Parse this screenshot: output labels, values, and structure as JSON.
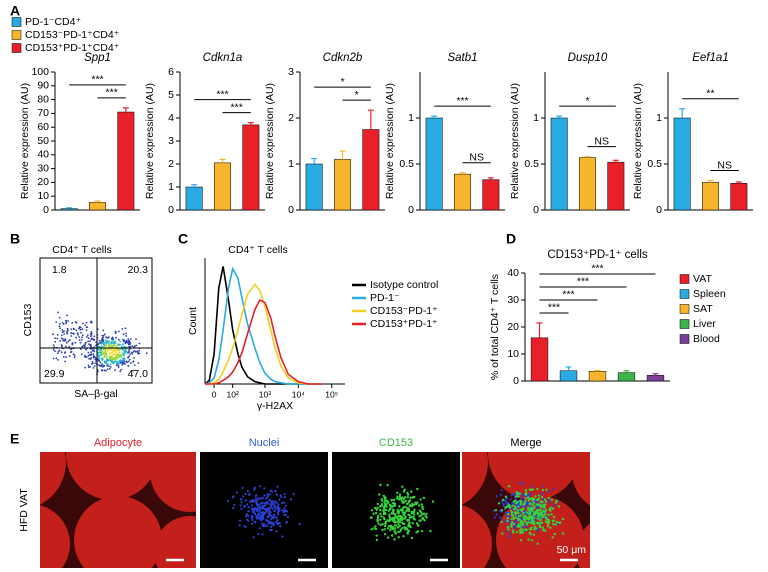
{
  "panel_labels": [
    "A",
    "B",
    "C",
    "D",
    "E"
  ],
  "legend": [
    {
      "name": "PD-1⁻CD4⁺",
      "color": "#29abe2"
    },
    {
      "name": "CD153⁻PD-1⁺CD4⁺",
      "color": "#f7b52c"
    },
    {
      "name": "CD153⁺PD-1⁺CD4⁺",
      "color": "#e8202a"
    }
  ],
  "chart_data": [
    {
      "type": "bar",
      "title": "Spp1",
      "y_label": "Relative expression (AU)",
      "categories": [
        null,
        null,
        null
      ],
      "values": [
        1,
        5.5,
        71
      ],
      "errors": [
        0.6,
        1,
        3
      ],
      "colors": [
        "#29abe2",
        "#f7b52c",
        "#e8202a"
      ],
      "ylim": [
        0,
        100
      ],
      "yticks": [
        0,
        10,
        20,
        30,
        40,
        50,
        60,
        70,
        80,
        90,
        100
      ],
      "significance": [
        {
          "label": "***",
          "between": [
            0,
            2
          ]
        },
        {
          "label": "***",
          "between": [
            1,
            2
          ]
        }
      ]
    },
    {
      "type": "bar",
      "title": "Cdkn1a",
      "y_label": "Relative expression (AU)",
      "categories": [
        null,
        null,
        null
      ],
      "values": [
        1,
        2.05,
        3.7
      ],
      "errors": [
        0.1,
        0.15,
        0.1
      ],
      "colors": [
        "#29abe2",
        "#f7b52c",
        "#e8202a"
      ],
      "ylim": [
        0,
        6
      ],
      "yticks": [
        0,
        1,
        2,
        3,
        4,
        5,
        6
      ],
      "significance": [
        {
          "label": "***",
          "between": [
            0,
            2
          ]
        },
        {
          "label": "***",
          "between": [
            1,
            2
          ]
        }
      ]
    },
    {
      "type": "bar",
      "title": "Cdkn2b",
      "y_label": "Relative expression (AU)",
      "categories": [
        null,
        null,
        null
      ],
      "values": [
        1,
        1.1,
        1.75
      ],
      "errors": [
        0.12,
        0.18,
        0.42
      ],
      "colors": [
        "#29abe2",
        "#f7b52c",
        "#e8202a"
      ],
      "ylim": [
        0,
        3
      ],
      "yticks": [
        0,
        1,
        2,
        3
      ],
      "significance": [
        {
          "label": "*",
          "between": [
            0,
            2
          ]
        },
        {
          "label": "*",
          "between": [
            1,
            2
          ]
        }
      ]
    },
    {
      "type": "bar",
      "title": "Satb1",
      "y_label": "Relative expression (AU)",
      "categories": [
        null,
        null,
        null
      ],
      "values": [
        1,
        0.39,
        0.33
      ],
      "errors": [
        0.02,
        0.015,
        0.02
      ],
      "colors": [
        "#29abe2",
        "#f7b52c",
        "#e8202a"
      ],
      "ylim": [
        0,
        1.5
      ],
      "yticks": [
        0,
        0.5,
        1
      ],
      "significance": [
        {
          "label": "***",
          "between": [
            0,
            2
          ]
        },
        {
          "label": "NS",
          "between": [
            1,
            2
          ]
        }
      ]
    },
    {
      "type": "bar",
      "title": "Dusp10",
      "y_label": "Relative expression (AU)",
      "categories": [
        null,
        null,
        null
      ],
      "values": [
        1,
        0.57,
        0.52
      ],
      "errors": [
        0.02,
        0.01,
        0.02
      ],
      "colors": [
        "#29abe2",
        "#f7b52c",
        "#e8202a"
      ],
      "ylim": [
        0,
        1.5
      ],
      "yticks": [
        0,
        0.5,
        1
      ],
      "significance": [
        {
          "label": "*",
          "between": [
            0,
            2
          ]
        },
        {
          "label": "NS",
          "between": [
            1,
            2
          ]
        }
      ]
    },
    {
      "type": "bar",
      "title": "Eef1a1",
      "y_label": "Relative expression (AU)",
      "categories": [
        null,
        null,
        null
      ],
      "values": [
        1,
        0.3,
        0.29
      ],
      "errors": [
        0.1,
        0.02,
        0.015
      ],
      "colors": [
        "#29abe2",
        "#f7b52c",
        "#e8202a"
      ],
      "ylim": [
        0,
        1.5
      ],
      "yticks": [
        0,
        0.5,
        1
      ],
      "significance": [
        {
          "label": "**",
          "between": [
            0,
            2
          ]
        },
        {
          "label": "NS",
          "between": [
            1,
            2
          ]
        }
      ]
    },
    {
      "type": "line",
      "title": "CD4⁺ T cells",
      "x_label": "γ-H2AX",
      "y_label": "Count",
      "xscale": "biexponential",
      "x": [
        -40,
        -20,
        0,
        20,
        40,
        70,
        100,
        150,
        200,
        300,
        500,
        700,
        1000,
        1500,
        2000,
        3000,
        5000,
        10000,
        20000,
        50000
      ],
      "xlim": [
        -40,
        250000
      ],
      "xticks": [
        0,
        {
          "value": 100,
          "label": "10²"
        },
        {
          "value": 1000,
          "label": "10³"
        },
        {
          "value": 10000,
          "label": "10⁴"
        },
        {
          "value": 100000,
          "label": "10⁵"
        }
      ],
      "ylim": [
        0,
        105
      ],
      "series": [
        {
          "name": "Isotype control",
          "color": "#000000",
          "values": [
            0,
            3,
            25,
            80,
            98,
            70,
            45,
            25,
            14,
            6,
            2,
            1,
            0,
            0,
            0,
            0,
            0,
            0,
            0,
            0
          ]
        },
        {
          "name": "PD-1⁻",
          "color": "#29abe2",
          "values": [
            0,
            1,
            5,
            20,
            45,
            80,
            96,
            88,
            72,
            50,
            30,
            18,
            9,
            4,
            2,
            1,
            0,
            0,
            0,
            0
          ]
        },
        {
          "name": "CD153⁻PD-1⁺",
          "color": "#f2d01e",
          "values": [
            0,
            0,
            1,
            4,
            10,
            20,
            30,
            45,
            58,
            75,
            83,
            78,
            65,
            45,
            30,
            15,
            5,
            1,
            0,
            0
          ]
        },
        {
          "name": "CD153⁺PD-1⁺",
          "color": "#e8202a",
          "values": [
            0,
            0,
            0,
            1,
            3,
            6,
            10,
            18,
            26,
            42,
            62,
            70,
            68,
            55,
            40,
            22,
            8,
            2,
            0,
            0
          ]
        }
      ]
    },
    {
      "type": "bar",
      "title": "CD153⁺PD-1⁺ cells",
      "y_label": "% of total CD4⁺ T cells",
      "categories": [
        "VAT",
        "Spleen",
        "SAT",
        "Liver",
        "Blood"
      ],
      "values": [
        16,
        3.8,
        3.6,
        3.1,
        2.1
      ],
      "errors": [
        5.5,
        1.4,
        0.3,
        0.7,
        0.6
      ],
      "colors": [
        "#e8202a",
        "#29abe2",
        "#f7b52c",
        "#3cb44a",
        "#7b3f98"
      ],
      "ylim": [
        0,
        40
      ],
      "yticks": [
        0,
        10,
        20,
        30,
        40
      ],
      "legend_position": "right",
      "significance": [
        {
          "label": "***",
          "between": [
            0,
            4
          ]
        },
        {
          "label": "***",
          "between": [
            0,
            3
          ]
        },
        {
          "label": "***",
          "between": [
            0,
            2
          ]
        },
        {
          "label": "***",
          "between": [
            0,
            1
          ]
        }
      ]
    }
  ],
  "flow_plot": {
    "title": "CD4⁺ T cells",
    "x_label": "SA–β-gal",
    "y_label": "CD153",
    "quadrants": [
      "1.8",
      "20.3",
      "29.9",
      "47.0"
    ]
  },
  "micrographs": {
    "channels": [
      {
        "label": "Adipocyte",
        "color": "#e8202a"
      },
      {
        "label": "Nuclei",
        "color": "#2e5fd8"
      },
      {
        "label": "CD153",
        "color": "#3cb44a"
      },
      {
        "label": "Merge",
        "color": "#000000"
      }
    ],
    "row_label": "HFD VAT",
    "scale_bar": "50 μm"
  }
}
